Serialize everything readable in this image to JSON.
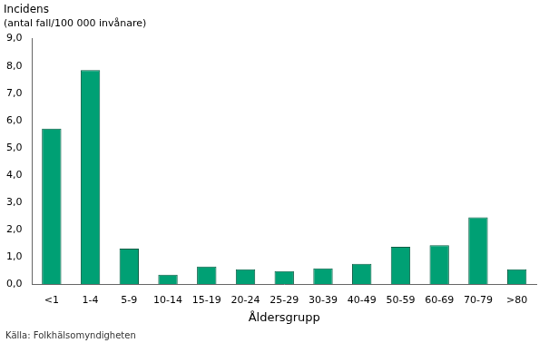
{
  "chart_data": {
    "type": "bar",
    "title": "Incidens",
    "subtitle": "(antal fall/100 000 invånare)",
    "xlabel": "Åldersgrupp",
    "source": "Källa: Folkhälsomyndigheten",
    "categories": [
      "<1",
      "1-4",
      "5-9",
      "10-14",
      "15-19",
      "20-24",
      "25-29",
      "30-39",
      "40-49",
      "50-59",
      "60-69",
      "70-79",
      ">80"
    ],
    "values": [
      5.7,
      7.85,
      1.3,
      0.35,
      0.65,
      0.55,
      0.48,
      0.58,
      0.75,
      1.37,
      1.43,
      2.45,
      0.55
    ],
    "color": "#00a074",
    "ylim": [
      0,
      9
    ],
    "yticks": [
      {
        "value": 0,
        "label": "0,0"
      },
      {
        "value": 1,
        "label": "1,0"
      },
      {
        "value": 2,
        "label": "2,0"
      },
      {
        "value": 3,
        "label": "3,0"
      },
      {
        "value": 4,
        "label": "4,0"
      },
      {
        "value": 5,
        "label": "5,0"
      },
      {
        "value": 6,
        "label": "6,0"
      },
      {
        "value": 7,
        "label": "7,0"
      },
      {
        "value": 8,
        "label": "8,0"
      },
      {
        "value": 9,
        "label": "9,0"
      }
    ],
    "grid": false
  }
}
